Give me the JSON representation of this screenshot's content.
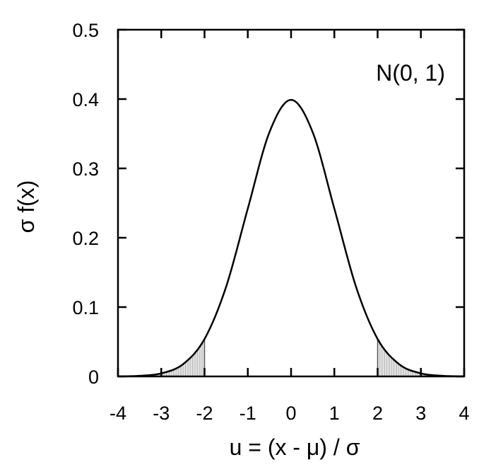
{
  "chart_data": {
    "type": "line",
    "title": "",
    "annotation": "N(0, 1)",
    "xlabel": "u = (x - μ) / σ",
    "ylabel": "σ f(x)",
    "xlim": [
      -4,
      4
    ],
    "ylim": [
      0,
      0.5
    ],
    "xticks": [
      -4,
      -3,
      -2,
      -1,
      0,
      1,
      2,
      3,
      4
    ],
    "xtick_labels": [
      "-4",
      "-3",
      "-2",
      "-1",
      "0",
      "1",
      "2",
      "3",
      "4"
    ],
    "yticks": [
      0,
      0.1,
      0.2,
      0.3,
      0.4,
      0.5
    ],
    "ytick_labels": [
      "0",
      "0.1",
      "0.2",
      "0.3",
      "0.4",
      "0.5"
    ],
    "grid": false,
    "series": [
      {
        "x": [
          -4,
          -3.5,
          -3,
          -2.5,
          -2,
          -1.5,
          -1,
          -0.5,
          0,
          0.5,
          1,
          1.5,
          2,
          2.5,
          3,
          3.5,
          4
        ],
        "values": [
          0.0001,
          0.0009,
          0.0044,
          0.0175,
          0.054,
          0.1295,
          0.242,
          0.3521,
          0.3989,
          0.3521,
          0.242,
          0.1295,
          0.054,
          0.0175,
          0.0044,
          0.0009,
          0.0001
        ]
      }
    ],
    "shaded_regions": [
      {
        "from": -4,
        "to": -2
      },
      {
        "from": 2,
        "to": 4
      }
    ],
    "colors": {
      "line": "#000000",
      "shade": "#9a9a9a"
    }
  }
}
